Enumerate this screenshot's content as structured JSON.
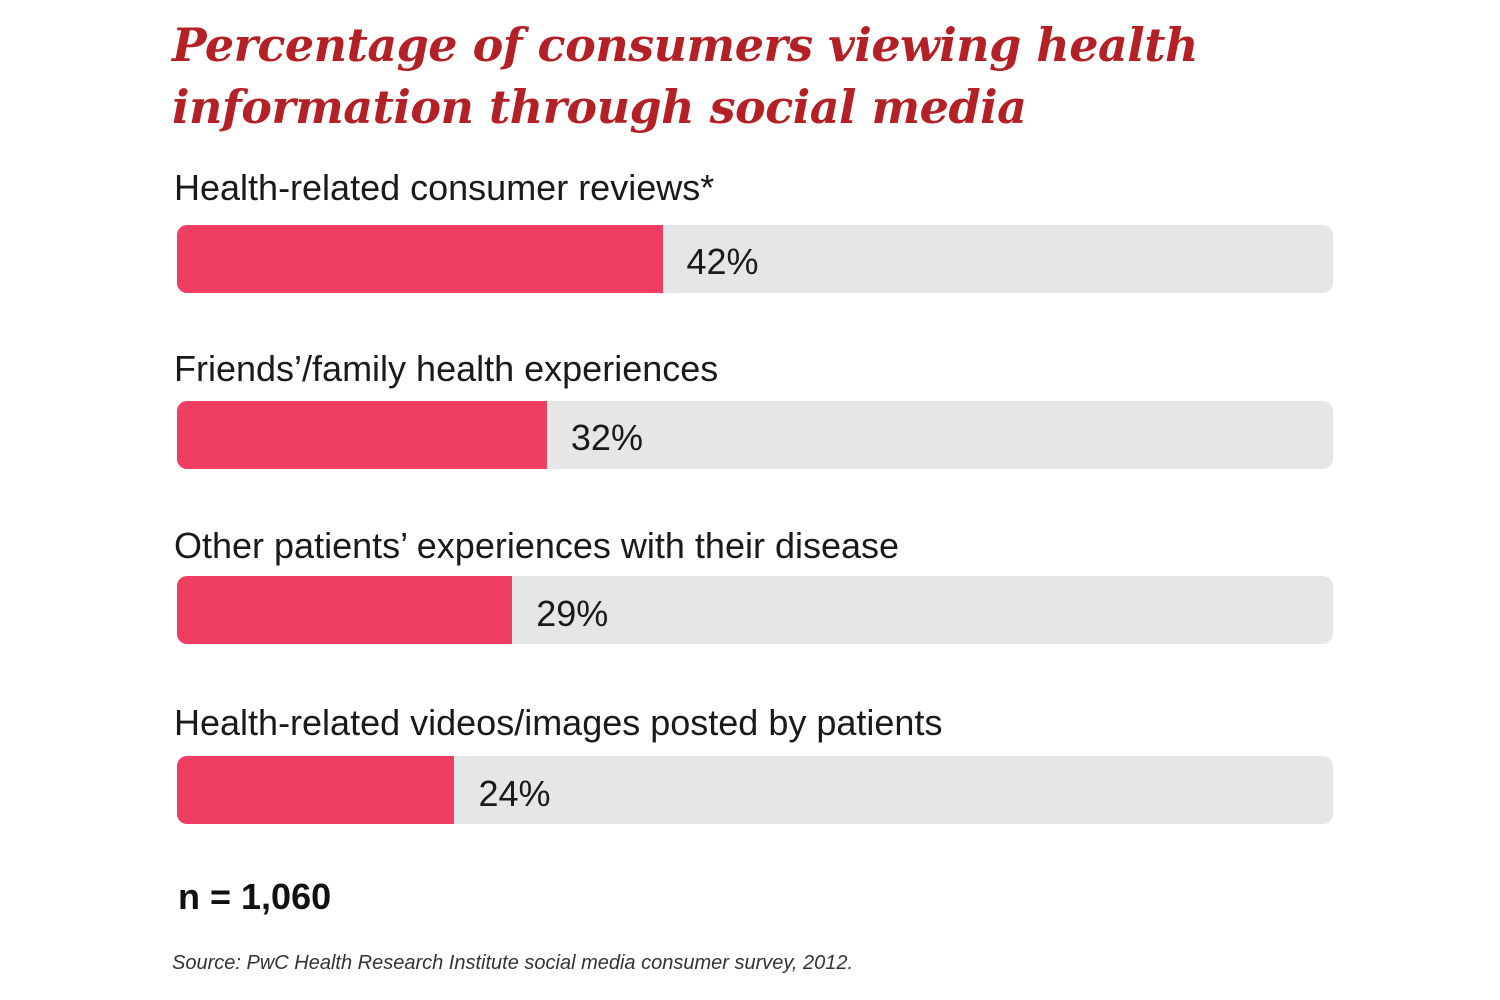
{
  "chart_data": {
    "type": "bar",
    "orientation": "horizontal",
    "title": "Percentage of consumers viewing health information through social media",
    "categories": [
      "Health-related consumer reviews*",
      "Friends’/family health experiences",
      "Other patients’ experiences with their disease",
      "Health-related videos/images posted by patients"
    ],
    "values": [
      42,
      32,
      29,
      24
    ],
    "value_labels": [
      "42%",
      "32%",
      "29%",
      "24%"
    ],
    "xlim": [
      0,
      100
    ],
    "grid": false,
    "legend": "none",
    "sample_size": "n = 1,060",
    "source": "Source: PwC Health Research Institute social media consumer survey, 2012."
  },
  "colors": {
    "title": "#b32126",
    "bar_fill": "#ef3e62",
    "bar_track": "#e5e6e8"
  }
}
